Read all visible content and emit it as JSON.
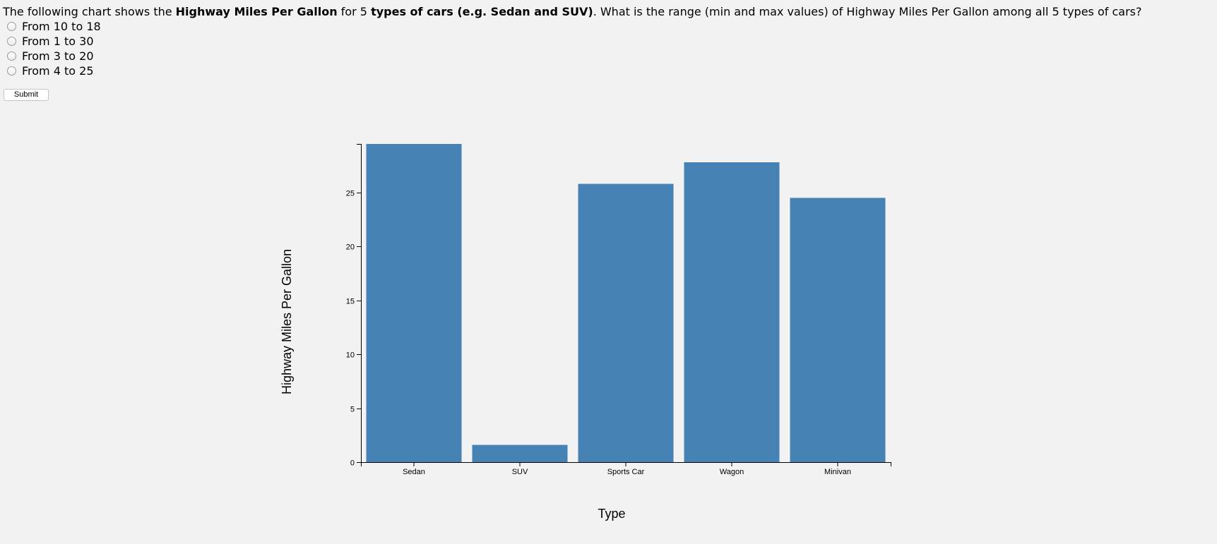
{
  "question": {
    "p1": "The following chart shows the ",
    "b1": "Highway Miles Per Gallon",
    "p2": " for 5 ",
    "b2": "types of cars (e.g. Sedan and SUV)",
    "p3": ". What is the range (min and max values) of Highway Miles Per Gallon among all 5 types of cars?"
  },
  "options": [
    "From 10 to 18",
    "From 1 to 30",
    "From 3 to 20",
    "From 4 to 25"
  ],
  "submit_label": "Submit",
  "colors": {
    "bar": "#4682b4",
    "background": "#f2f2f2"
  },
  "chart_data": {
    "type": "bar",
    "categories": [
      "Sedan",
      "SUV",
      "Sports Car",
      "Wagon",
      "Minivan"
    ],
    "values": [
      29.5,
      1.6,
      25.8,
      27.8,
      24.5
    ],
    "xlabel": "Type",
    "ylabel": "Highway Miles Per Gallon",
    "ylim": [
      0,
      29.5
    ],
    "yticks": [
      0,
      5,
      10,
      15,
      20,
      25
    ],
    "grid": false,
    "legend": "none"
  }
}
